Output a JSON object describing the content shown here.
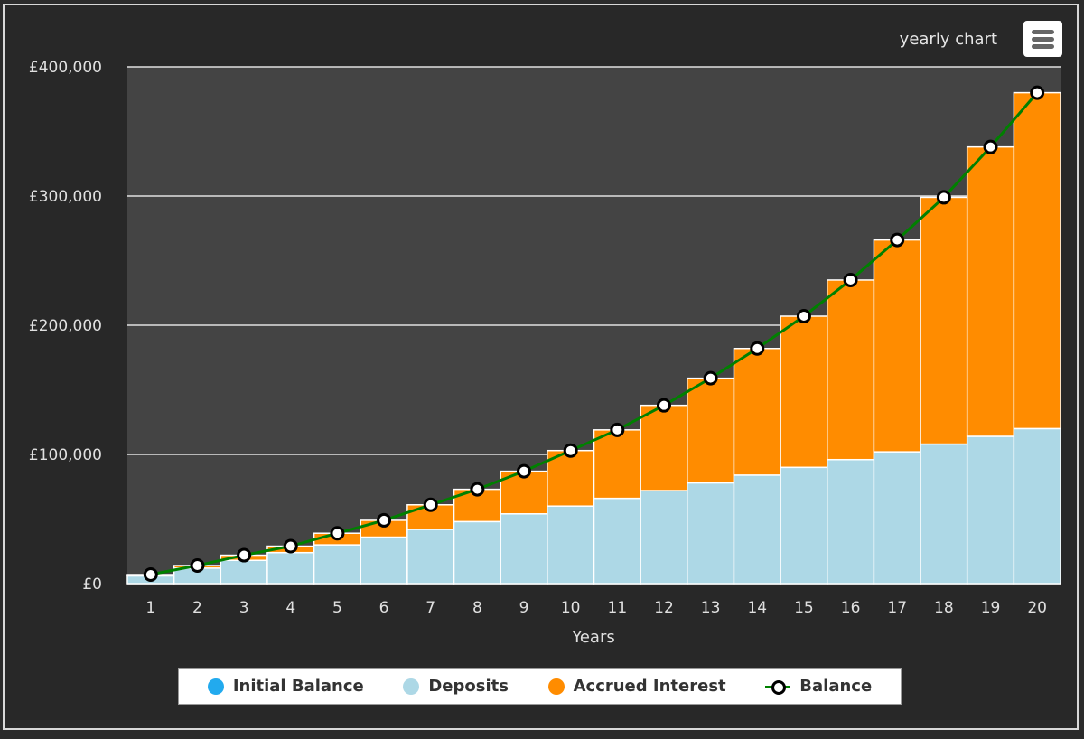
{
  "header": {
    "title": "yearly chart",
    "menu_icon": "hamburger-menu-icon"
  },
  "colors": {
    "background": "#282828",
    "plot_background": "#444444",
    "initial_balance": "#22aaee",
    "deposits": "#add8e6",
    "accrued_interest": "#ff8c00",
    "balance_line": "#008000",
    "gridline": "#e0e0e0"
  },
  "legend": {
    "items": [
      {
        "label": "Initial Balance",
        "type": "dot",
        "color": "#22aaee"
      },
      {
        "label": "Deposits",
        "type": "dot",
        "color": "#add8e6"
      },
      {
        "label": "Accrued Interest",
        "type": "dot",
        "color": "#ff8c00"
      },
      {
        "label": "Balance",
        "type": "line-marker",
        "color": "#008000"
      }
    ]
  },
  "chart_data": {
    "type": "bar",
    "stacked": true,
    "title": "yearly chart",
    "xlabel": "Years",
    "ylabel": "",
    "ylim": [
      0,
      400000
    ],
    "yticks": [
      0,
      100000,
      200000,
      300000,
      400000
    ],
    "ytick_labels": [
      "£0",
      "£100,000",
      "£200,000",
      "£300,000",
      "£400,000"
    ],
    "grid": true,
    "legend_position": "bottom",
    "categories": [
      "1",
      "2",
      "3",
      "4",
      "5",
      "6",
      "7",
      "8",
      "9",
      "10",
      "11",
      "12",
      "13",
      "14",
      "15",
      "16",
      "17",
      "18",
      "19",
      "20"
    ],
    "series": [
      {
        "name": "Initial Balance",
        "type": "bar",
        "values": [
          0,
          0,
          0,
          0,
          0,
          0,
          0,
          0,
          0,
          0,
          0,
          0,
          0,
          0,
          0,
          0,
          0,
          0,
          0,
          0
        ]
      },
      {
        "name": "Deposits",
        "type": "bar",
        "values": [
          6000,
          12000,
          18000,
          24000,
          30000,
          36000,
          42000,
          48000,
          54000,
          60000,
          66000,
          72000,
          78000,
          84000,
          90000,
          96000,
          102000,
          108000,
          114000,
          120000
        ]
      },
      {
        "name": "Accrued Interest",
        "type": "bar",
        "values": [
          1000,
          2000,
          4000,
          5000,
          9000,
          13000,
          19000,
          25000,
          33000,
          43000,
          53000,
          66000,
          81000,
          98000,
          117000,
          139000,
          164000,
          191000,
          224000,
          260000
        ]
      },
      {
        "name": "Balance",
        "type": "line",
        "values": [
          7000,
          14000,
          22000,
          29000,
          39000,
          49000,
          61000,
          73000,
          87000,
          103000,
          119000,
          138000,
          159000,
          182000,
          207000,
          235000,
          266000,
          299000,
          338000,
          380000
        ]
      }
    ]
  }
}
